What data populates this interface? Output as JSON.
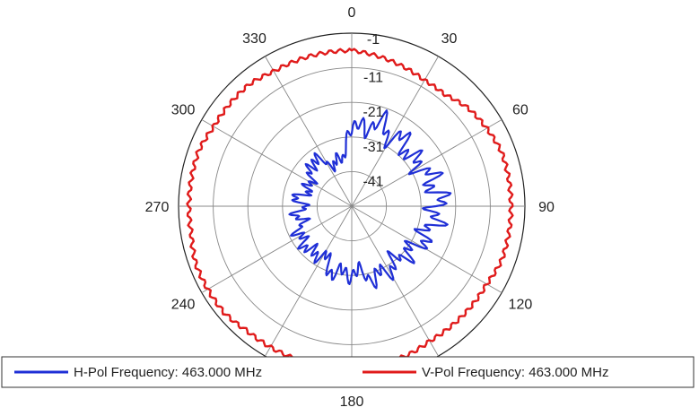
{
  "chart_data": {
    "type": "polar-line",
    "angle_unit": "degrees",
    "angle_zero": "top",
    "angle_direction": "clockwise",
    "angle_ticks": [
      {
        "angle": 0,
        "label": "0"
      },
      {
        "angle": 30,
        "label": "30"
      },
      {
        "angle": 60,
        "label": "60"
      },
      {
        "angle": 90,
        "label": "90"
      },
      {
        "angle": 120,
        "label": "120"
      },
      {
        "angle": 180,
        "label": "180"
      },
      {
        "angle": 240,
        "label": "240"
      },
      {
        "angle": 270,
        "label": "270"
      },
      {
        "angle": 300,
        "label": "300"
      },
      {
        "angle": 330,
        "label": "330"
      }
    ],
    "radial_range": [
      -51,
      -1
    ],
    "radial_ticks": [
      -1,
      -11,
      -21,
      -31,
      -41
    ],
    "radial_tick_labels": [
      "-1",
      "-11",
      "-21",
      "-31",
      "-41"
    ],
    "grid": true,
    "legend_position": "bottom",
    "series": [
      {
        "name": "H-Pol Frequency: 463.000 MHz",
        "color": "#1f2fd6",
        "angles": [
          0,
          10,
          20,
          30,
          40,
          50,
          60,
          70,
          80,
          90,
          100,
          110,
          120,
          130,
          140,
          150,
          160,
          170,
          180,
          190,
          200,
          210,
          220,
          230,
          240,
          250,
          260,
          270,
          280,
          290,
          300,
          310,
          320,
          330,
          340,
          350
        ],
        "values": [
          -30,
          -27,
          -26,
          -28,
          -27,
          -29,
          -28,
          -27,
          -26,
          -26,
          -27,
          -28,
          -29,
          -30,
          -31,
          -30,
          -29,
          -31,
          -32,
          -31,
          -32,
          -35,
          -33,
          -34,
          -33,
          -36,
          -35,
          -37,
          -35,
          -38,
          -37,
          -36,
          -33,
          -37,
          -38,
          -36
        ]
      },
      {
        "name": "V-Pol Frequency: 463.000 MHz",
        "color": "#e01b1b",
        "angles": [
          0,
          10,
          20,
          30,
          40,
          50,
          60,
          70,
          80,
          90,
          100,
          110,
          120,
          130,
          140,
          150,
          160,
          170,
          180,
          190,
          200,
          210,
          220,
          230,
          240,
          250,
          260,
          270,
          280,
          290,
          300,
          310,
          320,
          330,
          340,
          350
        ],
        "values": [
          -6,
          -7,
          -8,
          -9,
          -9,
          -7,
          -6,
          -5,
          -5,
          -5,
          -5,
          -5,
          -6,
          -6,
          -6,
          -6,
          -5,
          -5,
          -4,
          -4,
          -4,
          -4,
          -4,
          -3,
          -3,
          -3,
          -4,
          -4,
          -4,
          -4,
          -5,
          -5,
          -5,
          -6,
          -6,
          -6
        ]
      }
    ]
  }
}
